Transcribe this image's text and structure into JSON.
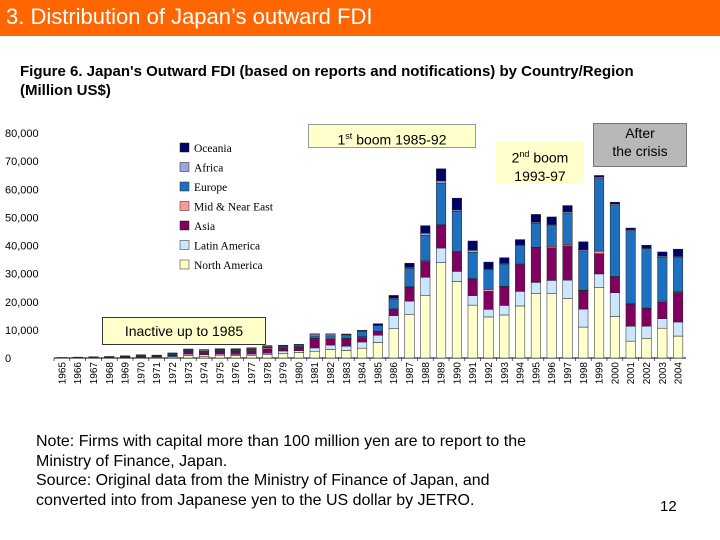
{
  "header": {
    "title": "3. Distribution of Japan’s outward FDI"
  },
  "figure_title": "Figure 6. Japan's Outward FDI (based on reports and notifications) by Country/Region (Million US$)",
  "annotations": {
    "boom1_ordinal": "1",
    "boom1_sup": "st",
    "boom1_text": " boom 1985-92",
    "boom2_ordinal": "2",
    "boom2_sup": "nd",
    "boom2_text": " boom",
    "boom2_years": "1993-97",
    "crisis_line1": "After",
    "crisis_line2": "the crisis",
    "inactive": "Inactive up to 1985"
  },
  "note": {
    "line1": "Note: Firms with capital more than 100 million yen are to report to the",
    "line2": "Ministry of Finance, Japan.",
    "line3": "Source: Original data from the Ministry of Finance of Japan, and",
    "line4": "converted into from Japanese yen to the US dollar by JETRO."
  },
  "page_number": "12",
  "chart_data": {
    "type": "bar",
    "stacked": true,
    "title": "",
    "xlabel": "",
    "ylabel": "",
    "ylim": [
      0,
      80000
    ],
    "yticks": [
      0,
      10000,
      20000,
      30000,
      40000,
      50000,
      60000,
      70000,
      80000
    ],
    "ytick_labels": [
      "0",
      "10,000",
      "20,000",
      "30,000",
      "40,000",
      "50,000",
      "60,000",
      "70,000",
      "80,000"
    ],
    "categories": [
      "1965",
      "1966",
      "1967",
      "1968",
      "1969",
      "1970",
      "1971",
      "1972",
      "1973",
      "1974",
      "1975",
      "1976",
      "1977",
      "1978",
      "1979",
      "1980",
      "1981",
      "1982",
      "1983",
      "1984",
      "1985",
      "1986",
      "1987",
      "1988",
      "1989",
      "1990",
      "1991",
      "1992",
      "1993",
      "1994",
      "1995",
      "1996",
      "1997",
      "1998",
      "1999",
      "2000",
      "2001",
      "2002",
      "2003",
      "2004"
    ],
    "series": [
      {
        "name": "North America",
        "color": "#ffffcc",
        "values": [
          50,
          100,
          120,
          100,
          150,
          200,
          200,
          400,
          900,
          600,
          1000,
          900,
          800,
          1200,
          1500,
          2000,
          2400,
          3000,
          2700,
          3500,
          5500,
          10400,
          15400,
          22300,
          33900,
          27200,
          18800,
          14600,
          15300,
          18500,
          23000,
          23000,
          21200,
          11000,
          25000,
          14800,
          6000,
          7000,
          10600,
          7800
        ]
      },
      {
        "name": "Latin America",
        "color": "#cce6ff",
        "values": [
          20,
          40,
          60,
          80,
          150,
          200,
          250,
          300,
          500,
          600,
          400,
          400,
          600,
          500,
          1000,
          600,
          1200,
          1600,
          1500,
          2200,
          2600,
          4700,
          4800,
          6400,
          5200,
          3600,
          3400,
          2700,
          3400,
          5200,
          3900,
          4600,
          6500,
          6400,
          4900,
          8400,
          5300,
          4300,
          3400,
          5000
        ]
      },
      {
        "name": "Asia",
        "color": "#800060",
        "values": [
          30,
          50,
          80,
          100,
          200,
          300,
          250,
          400,
          1000,
          800,
          1000,
          1100,
          1300,
          1500,
          1000,
          1200,
          3300,
          2100,
          2600,
          1600,
          1400,
          2300,
          4900,
          5600,
          8200,
          7000,
          5900,
          6400,
          6600,
          9700,
          12300,
          11600,
          12200,
          6500,
          7200,
          5600,
          7800,
          6300,
          5900,
          10500
        ]
      },
      {
        "name": "Mid & Near East",
        "color": "#ff9999",
        "values": [
          0,
          0,
          0,
          10,
          20,
          30,
          40,
          100,
          200,
          300,
          200,
          200,
          300,
          400,
          150,
          200,
          150,
          300,
          180,
          250,
          50,
          50,
          200,
          250,
          70,
          30,
          100,
          700,
          200,
          300,
          150,
          500,
          500,
          200,
          900,
          200,
          200,
          150,
          350,
          250
        ]
      },
      {
        "name": "Europe",
        "color": "#1f6fbf",
        "values": [
          30,
          60,
          80,
          150,
          150,
          300,
          200,
          400,
          300,
          200,
          300,
          300,
          200,
          300,
          500,
          600,
          800,
          900,
          1000,
          1900,
          2000,
          3500,
          6600,
          9100,
          14800,
          14300,
          9400,
          7100,
          7900,
          6200,
          8500,
          7400,
          11200,
          14000,
          25800,
          25200,
          26000,
          21100,
          15600,
          12200
        ]
      },
      {
        "name": "Africa",
        "color": "#99a8d8",
        "values": [
          10,
          20,
          40,
          40,
          50,
          50,
          40,
          100,
          200,
          400,
          200,
          250,
          300,
          300,
          200,
          100,
          600,
          600,
          350,
          300,
          150,
          300,
          300,
          700,
          800,
          500,
          700,
          200,
          250,
          300,
          400,
          350,
          400,
          400,
          500,
          500,
          300,
          250,
          350,
          350
        ]
      },
      {
        "name": "Oceania",
        "color": "#000066",
        "values": [
          10,
          30,
          50,
          50,
          50,
          50,
          40,
          100,
          100,
          100,
          200,
          150,
          150,
          200,
          200,
          150,
          150,
          100,
          200,
          100,
          500,
          1000,
          1500,
          2700,
          4300,
          4200,
          3300,
          2400,
          2000,
          1900,
          2800,
          2700,
          2200,
          2800,
          600,
          700,
          600,
          1000,
          1500,
          2600
        ]
      }
    ],
    "legend_position": "inside-top-left",
    "legend_order": [
      "Oceania",
      "Africa",
      "Europe",
      "Mid & Near East",
      "Asia",
      "Latin America",
      "North America"
    ],
    "grid": false
  }
}
